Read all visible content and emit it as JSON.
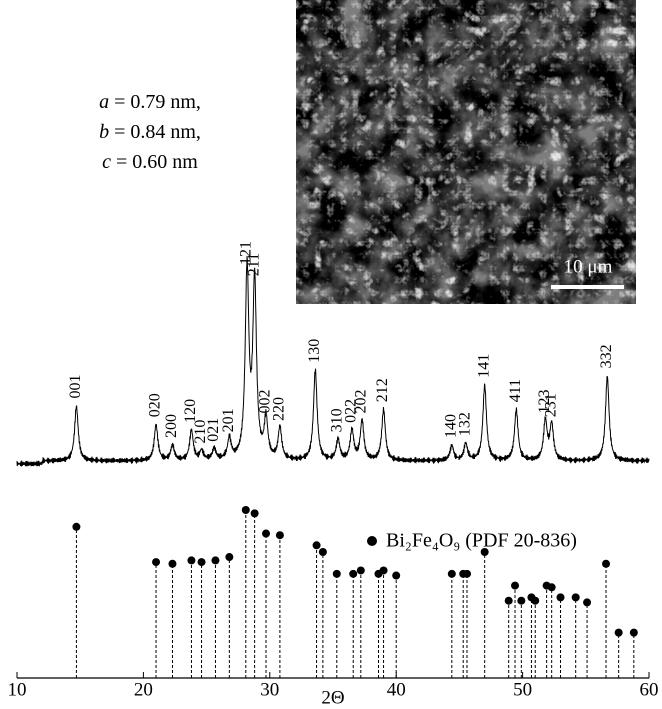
{
  "chart_data": {
    "type": "xrd",
    "xlabel": "2Θ",
    "xlim": [
      10,
      60
    ],
    "xticks": [
      10,
      20,
      30,
      40,
      50,
      60
    ],
    "annotations": [
      {
        "symbol": "a",
        "rest": " = 0.79 nm,"
      },
      {
        "symbol": "b",
        "rest": " = 0.84 nm,"
      },
      {
        "symbol": "c",
        "rest": " = 0.60 nm"
      }
    ],
    "inset": {
      "scale_bar": "10 μm"
    },
    "peaks": {
      "color": "#000000",
      "x": [
        14.7,
        21.0,
        22.3,
        23.8,
        24.6,
        25.6,
        26.8,
        28.2,
        28.8,
        29.7,
        30.8,
        33.6,
        35.4,
        36.5,
        37.3,
        39.0,
        44.4,
        45.5,
        47.0,
        49.5,
        51.8,
        52.3,
        56.7
      ],
      "values": [
        29,
        19,
        8,
        16,
        5,
        6,
        11,
        100,
        94,
        21,
        17,
        48,
        11,
        16,
        21,
        27,
        8,
        9,
        40,
        27,
        21,
        19,
        45
      ],
      "labels": [
        "001",
        "020",
        "200",
        "120",
        "210",
        "021",
        "201",
        "121",
        "211",
        "002",
        "220",
        "130",
        "310",
        "022",
        "202",
        "212",
        "140",
        "132",
        "141",
        "411",
        "123",
        "231",
        "332"
      ]
    },
    "reference": {
      "name": "Bi₂Fe₄O₉ (PDF 20-836)",
      "color": "#000000",
      "x": [
        14.7,
        21.0,
        22.3,
        23.8,
        24.6,
        25.7,
        26.8,
        28.1,
        28.8,
        29.7,
        30.8,
        33.7,
        34.2,
        35.3,
        36.6,
        37.2,
        38.6,
        39.0,
        40.0,
        44.4,
        45.3,
        45.6,
        47.0,
        48.9,
        49.4,
        49.9,
        50.7,
        51.0,
        51.9,
        52.3,
        53.0,
        54.2,
        55.1,
        56.6,
        57.6,
        58.8
      ],
      "values": [
        90,
        69,
        68,
        70,
        69,
        70,
        72,
        100,
        98,
        86,
        85,
        79,
        75,
        62,
        62,
        64,
        62,
        64,
        61,
        62,
        62,
        62,
        75,
        46,
        55,
        46,
        48,
        46,
        55,
        54,
        48,
        48,
        45,
        68,
        27,
        27
      ]
    }
  }
}
